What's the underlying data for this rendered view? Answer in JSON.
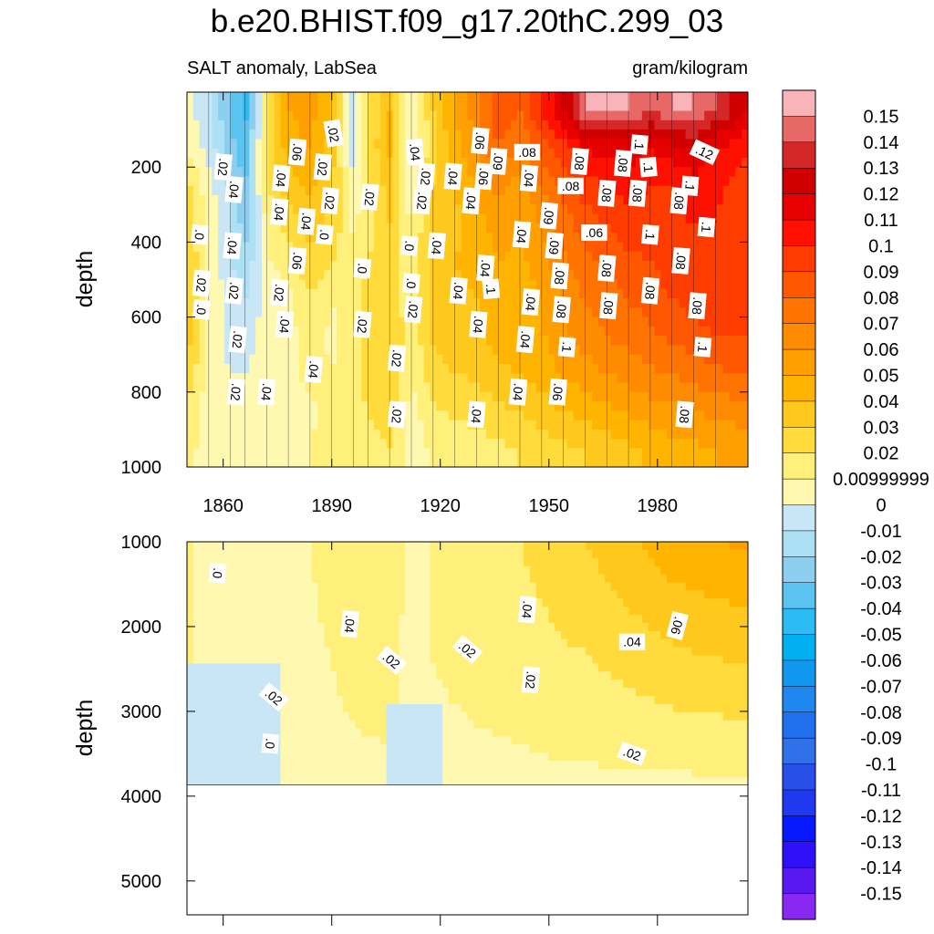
{
  "chart_data": {
    "type": "heatmap",
    "title": "b.e20.BHIST.f09_g17.20thC.299_03",
    "variable_label": "SALT anomaly, LabSea",
    "units_label": "gram/kilogram",
    "ylabel": "depth",
    "upper_panel": {
      "xlim": [
        1850,
        2005
      ],
      "ylim": [
        0,
        1000
      ],
      "x_ticks": [
        1860,
        1890,
        1920,
        1950,
        1980
      ],
      "x_tick_labels": [
        "1860",
        "1890",
        "1920",
        "1950",
        "1980"
      ],
      "y_ticks": [
        200,
        400,
        600,
        800,
        1000
      ],
      "y_tick_labels": [
        "200",
        "400",
        "600",
        "800",
        "1000"
      ]
    },
    "lower_panel": {
      "xlim": [
        1850,
        2005
      ],
      "ylim": [
        1000,
        5400
      ],
      "data_max_depth": 3870,
      "y_ticks": [
        1000,
        2000,
        3000,
        4000,
        5000
      ],
      "y_tick_labels": [
        "1000",
        "2000",
        "3000",
        "4000",
        "5000"
      ]
    },
    "colorbar": {
      "levels": [
        0.15,
        0.14,
        0.13,
        0.12,
        0.11,
        0.1,
        0.09,
        0.08,
        0.07,
        0.06,
        0.05,
        0.04,
        0.03,
        0.02,
        0.01,
        0,
        -0.01,
        -0.02,
        -0.03,
        -0.04,
        -0.05,
        -0.06,
        -0.07,
        -0.08,
        -0.09,
        -0.1,
        -0.11,
        -0.12,
        -0.13,
        -0.14,
        -0.15
      ],
      "labels": [
        "0.15",
        "0.14",
        "0.13",
        "0.12",
        "0.11",
        "0.1",
        "0.09",
        "0.08",
        "0.07",
        "0.06",
        "0.05",
        "0.04",
        "0.03",
        "0.02",
        "0.00999999",
        "0",
        "-0.01",
        "-0.02",
        "-0.03",
        "-0.04",
        "-0.05",
        "-0.06",
        "-0.07",
        "-0.08",
        "-0.09",
        "-0.1",
        "-0.11",
        "-0.12",
        "-0.13",
        "-0.14",
        "-0.15"
      ],
      "colors": [
        "#f8b4b8",
        "#e86868",
        "#d42828",
        "#d00000",
        "#e60000",
        "#ff1000",
        "#ff3c00",
        "#ff5800",
        "#ff7400",
        "#ff8c00",
        "#ffa000",
        "#ffb400",
        "#ffc81c",
        "#ffdc3c",
        "#fff07c",
        "#fff8b0",
        "#c8e6f6",
        "#ace0f4",
        "#8ccef0",
        "#5cc4f0",
        "#2cbcf4",
        "#00b0f0",
        "#1098f0",
        "#1e88f0",
        "#2070f0",
        "#3070e8",
        "#2850e8",
        "#2038f0",
        "#0818ff",
        "#3010f8",
        "#5818f0",
        "#8828f0"
      ]
    },
    "columns": [
      {
        "x": 1850,
        "v": [
          0.005,
          0.01,
          0.022,
          0.028,
          0.03,
          0.032,
          0.035,
          0.03,
          0.018,
          0.015
        ]
      },
      {
        "x": 1856,
        "v": [
          -0.008,
          -0.005,
          0.004,
          0.006,
          0.008,
          0.01,
          0.008,
          0.005,
          0.004,
          0.003
        ]
      },
      {
        "x": 1862,
        "v": [
          -0.03,
          -0.025,
          -0.012,
          -0.01,
          -0.008,
          -0.005,
          -0.003,
          0.0,
          0.002,
          0.003
        ]
      },
      {
        "x": 1866,
        "v": [
          -0.045,
          -0.04,
          -0.03,
          -0.025,
          -0.02,
          -0.01,
          -0.005,
          0.0,
          0.002,
          0.004
        ]
      },
      {
        "x": 1872,
        "v": [
          0.02,
          0.025,
          0.018,
          0.012,
          0.008,
          0.004,
          0.005,
          0.005,
          0.006,
          0.007
        ]
      },
      {
        "x": 1878,
        "v": [
          0.05,
          0.045,
          0.035,
          0.025,
          0.015,
          0.008,
          0.006,
          0.007,
          0.008,
          0.009
        ]
      },
      {
        "x": 1884,
        "v": [
          0.055,
          0.05,
          0.042,
          0.035,
          0.028,
          0.018,
          0.015,
          0.012,
          0.009,
          0.01
        ]
      },
      {
        "x": 1890,
        "v": [
          0.04,
          0.035,
          0.03,
          0.028,
          0.022,
          0.01,
          0.008,
          0.01,
          0.012,
          0.012
        ]
      },
      {
        "x": 1896,
        "v": [
          -0.01,
          -0.008,
          0.004,
          0.008,
          0.012,
          0.014,
          0.016,
          0.018,
          0.018,
          0.016
        ]
      },
      {
        "x": 1900,
        "v": [
          0.02,
          0.022,
          0.018,
          0.016,
          0.02,
          0.025,
          0.024,
          0.022,
          0.02,
          0.018
        ]
      },
      {
        "x": 1906,
        "v": [
          0.04,
          0.042,
          0.035,
          0.03,
          0.025,
          0.028,
          0.03,
          0.028,
          0.024,
          0.02
        ]
      },
      {
        "x": 1912,
        "v": [
          -0.005,
          -0.003,
          0.002,
          0.008,
          0.01,
          0.012,
          0.014,
          0.01,
          0.006,
          0.004
        ]
      },
      {
        "x": 1918,
        "v": [
          0.03,
          0.028,
          0.03,
          0.035,
          0.038,
          0.036,
          0.032,
          0.026,
          0.018,
          0.012
        ]
      },
      {
        "x": 1924,
        "v": [
          0.05,
          0.045,
          0.04,
          0.038,
          0.04,
          0.038,
          0.036,
          0.03,
          0.022,
          0.014
        ]
      },
      {
        "x": 1930,
        "v": [
          0.065,
          0.06,
          0.05,
          0.045,
          0.042,
          0.04,
          0.038,
          0.032,
          0.024,
          0.016
        ]
      },
      {
        "x": 1936,
        "v": [
          0.09,
          0.08,
          0.065,
          0.055,
          0.05,
          0.048,
          0.045,
          0.038,
          0.028,
          0.018
        ]
      },
      {
        "x": 1942,
        "v": [
          0.08,
          0.07,
          0.055,
          0.05,
          0.048,
          0.045,
          0.044,
          0.04,
          0.03,
          0.02
        ]
      },
      {
        "x": 1948,
        "v": [
          0.1,
          0.085,
          0.07,
          0.06,
          0.055,
          0.05,
          0.048,
          0.045,
          0.035,
          0.024
        ]
      },
      {
        "x": 1954,
        "v": [
          0.12,
          0.095,
          0.085,
          0.075,
          0.068,
          0.062,
          0.058,
          0.052,
          0.04,
          0.028
        ]
      },
      {
        "x": 1960,
        "v": [
          0.15,
          0.11,
          0.095,
          0.085,
          0.078,
          0.07,
          0.064,
          0.056,
          0.044,
          0.03
        ]
      },
      {
        "x": 1966,
        "v": [
          0.15,
          0.115,
          0.1,
          0.09,
          0.082,
          0.076,
          0.07,
          0.06,
          0.048,
          0.034
        ]
      },
      {
        "x": 1972,
        "v": [
          0.15,
          0.115,
          0.105,
          0.095,
          0.088,
          0.08,
          0.074,
          0.064,
          0.052,
          0.038
        ]
      },
      {
        "x": 1978,
        "v": [
          0.14,
          0.11,
          0.1,
          0.095,
          0.09,
          0.085,
          0.078,
          0.068,
          0.056,
          0.042
        ]
      },
      {
        "x": 1984,
        "v": [
          0.15,
          0.115,
          0.1,
          0.098,
          0.095,
          0.09,
          0.082,
          0.07,
          0.058,
          0.046
        ]
      },
      {
        "x": 1990,
        "v": [
          0.15,
          0.12,
          0.105,
          0.1,
          0.098,
          0.094,
          0.086,
          0.074,
          0.06,
          0.048
        ]
      },
      {
        "x": 1996,
        "v": [
          0.14,
          0.11,
          0.102,
          0.1,
          0.1,
          0.096,
          0.09,
          0.078,
          0.064,
          0.05
        ]
      },
      {
        "x": 2005,
        "v": [
          0.12,
          0.1,
          0.095,
          0.095,
          0.098,
          0.095,
          0.09,
          0.08,
          0.066,
          0.052
        ]
      }
    ],
    "upper_contour_labels": [
      {
        "t": ".02",
        "x": 1890.5,
        "y": 110,
        "rot": 80
      },
      {
        "t": ".06",
        "x": 1931,
        "y": 130,
        "rot": 95
      },
      {
        "t": ".04",
        "x": 1913,
        "y": 160,
        "rot": 85
      },
      {
        "t": ".06",
        "x": 1880.5,
        "y": 160,
        "rot": 95
      },
      {
        "t": ".08",
        "x": 1944,
        "y": 160,
        "rot": 0
      },
      {
        "t": ".1",
        "x": 1975,
        "y": 140,
        "rot": 95
      },
      {
        "t": ".12",
        "x": 1993,
        "y": 160,
        "rot": 25
      },
      {
        "t": ".02",
        "x": 1860,
        "y": 200,
        "rot": 95
      },
      {
        "t": ".09",
        "x": 1936,
        "y": 185,
        "rot": 95
      },
      {
        "t": ".02",
        "x": 1887.5,
        "y": 200,
        "rot": 95
      },
      {
        "t": ".08",
        "x": 1958.5,
        "y": 185,
        "rot": 95
      },
      {
        "t": ".08",
        "x": 1970.5,
        "y": 190,
        "rot": 95
      },
      {
        "t": ".1",
        "x": 1977.5,
        "y": 200,
        "rot": 85
      },
      {
        "t": ".02",
        "x": 1916,
        "y": 225,
        "rot": 95
      },
      {
        "t": ".04",
        "x": 1923.5,
        "y": 225,
        "rot": 95
      },
      {
        "t": ".06",
        "x": 1932,
        "y": 225,
        "rot": 95
      },
      {
        "t": ".04",
        "x": 1876,
        "y": 230,
        "rot": 95
      },
      {
        "t": ".04",
        "x": 1944.5,
        "y": 230,
        "rot": 95
      },
      {
        "t": ".08",
        "x": 1956,
        "y": 250,
        "rot": 0
      },
      {
        "t": ".1",
        "x": 1989,
        "y": 250,
        "rot": 95
      },
      {
        "t": ".04",
        "x": 1863,
        "y": 260,
        "rot": 95
      },
      {
        "t": ".02",
        "x": 1900.5,
        "y": 280,
        "rot": 95
      },
      {
        "t": ".08",
        "x": 1966,
        "y": 270,
        "rot": 95
      },
      {
        "t": ".08",
        "x": 1974.5,
        "y": 270,
        "rot": 95
      },
      {
        "t": ".02",
        "x": 1889.5,
        "y": 290,
        "rot": 95
      },
      {
        "t": ".02",
        "x": 1915,
        "y": 290,
        "rot": 95
      },
      {
        "t": ".04",
        "x": 1928.5,
        "y": 290,
        "rot": 95
      },
      {
        "t": ".08",
        "x": 1986,
        "y": 290,
        "rot": 95
      },
      {
        "t": ".04",
        "x": 1875.5,
        "y": 320,
        "rot": 95
      },
      {
        "t": ".09",
        "x": 1950,
        "y": 330,
        "rot": 95
      },
      {
        "t": ".04",
        "x": 1883,
        "y": 345,
        "rot": 95
      },
      {
        "t": ".1",
        "x": 1993.5,
        "y": 360,
        "rot": 95
      },
      {
        "t": ".06",
        "x": 1962.5,
        "y": 375,
        "rot": 0
      },
      {
        "t": ".1",
        "x": 1978,
        "y": 380,
        "rot": 95
      },
      {
        "t": ".0",
        "x": 1853.5,
        "y": 380,
        "rot": 95
      },
      {
        "t": ".04",
        "x": 1942.5,
        "y": 380,
        "rot": 95
      },
      {
        "t": ".0",
        "x": 1888,
        "y": 380,
        "rot": 95
      },
      {
        "t": ".04",
        "x": 1862.5,
        "y": 410,
        "rot": 95
      },
      {
        "t": ".0",
        "x": 1911.5,
        "y": 410,
        "rot": 95
      },
      {
        "t": ".04",
        "x": 1919,
        "y": 410,
        "rot": 95
      },
      {
        "t": ".09",
        "x": 1951.5,
        "y": 410,
        "rot": 95
      },
      {
        "t": ".06",
        "x": 1880.5,
        "y": 450,
        "rot": 95
      },
      {
        "t": ".08",
        "x": 1986.5,
        "y": 450,
        "rot": 95
      },
      {
        "t": ".0",
        "x": 1898.5,
        "y": 470,
        "rot": 95
      },
      {
        "t": ".04",
        "x": 1932.5,
        "y": 470,
        "rot": 95
      },
      {
        "t": ".08",
        "x": 1966,
        "y": 470,
        "rot": 95
      },
      {
        "t": ".08",
        "x": 1953,
        "y": 490,
        "rot": 95
      },
      {
        "t": ".02",
        "x": 1854,
        "y": 510,
        "rot": 95
      },
      {
        "t": ".1",
        "x": 1934,
        "y": 525,
        "rot": 85
      },
      {
        "t": ".0",
        "x": 1912,
        "y": 510,
        "rot": 95
      },
      {
        "t": ".02",
        "x": 1863,
        "y": 530,
        "rot": 95
      },
      {
        "t": ".02",
        "x": 1875.5,
        "y": 535,
        "rot": 95
      },
      {
        "t": ".04",
        "x": 1925,
        "y": 530,
        "rot": 95
      },
      {
        "t": ".08",
        "x": 1978,
        "y": 530,
        "rot": 95
      },
      {
        "t": ".04",
        "x": 1945,
        "y": 560,
        "rot": 95
      },
      {
        "t": ".08",
        "x": 1966.5,
        "y": 570,
        "rot": 95
      },
      {
        "t": ".08",
        "x": 1991,
        "y": 570,
        "rot": 95
      },
      {
        "t": ".0",
        "x": 1854,
        "y": 580,
        "rot": 95
      },
      {
        "t": ".02",
        "x": 1912.5,
        "y": 580,
        "rot": 95
      },
      {
        "t": ".08",
        "x": 1953.5,
        "y": 580,
        "rot": 95
      },
      {
        "t": ".04",
        "x": 1877,
        "y": 620,
        "rot": 95
      },
      {
        "t": ".02",
        "x": 1898.5,
        "y": 620,
        "rot": 95
      },
      {
        "t": ".04",
        "x": 1930.5,
        "y": 620,
        "rot": 95
      },
      {
        "t": ".02",
        "x": 1864,
        "y": 660,
        "rot": 95
      },
      {
        "t": ".04",
        "x": 1943.5,
        "y": 660,
        "rot": 95
      },
      {
        "t": ".1",
        "x": 1955,
        "y": 680,
        "rot": 95
      },
      {
        "t": ".1",
        "x": 1992.5,
        "y": 680,
        "rot": 95
      },
      {
        "t": ".02",
        "x": 1908,
        "y": 710,
        "rot": 95
      },
      {
        "t": ".04",
        "x": 1885,
        "y": 740,
        "rot": 95
      },
      {
        "t": ".02",
        "x": 1863.5,
        "y": 800,
        "rot": 95
      },
      {
        "t": ".04",
        "x": 1872,
        "y": 800,
        "rot": 95
      },
      {
        "t": ".04",
        "x": 1941.5,
        "y": 800,
        "rot": 95
      },
      {
        "t": ".06",
        "x": 1952.5,
        "y": 800,
        "rot": 95
      },
      {
        "t": ".02",
        "x": 1908,
        "y": 860,
        "rot": 95
      },
      {
        "t": ".04",
        "x": 1930,
        "y": 860,
        "rot": 95
      },
      {
        "t": ".08",
        "x": 1987.5,
        "y": 860,
        "rot": 95
      }
    ],
    "lower_contour_labels": [
      {
        "t": ".0",
        "x": 1858.5,
        "y": 1370,
        "rot": 95
      },
      {
        "t": ".04",
        "x": 1944,
        "y": 1800,
        "rot": 95
      },
      {
        "t": ".04",
        "x": 1895,
        "y": 1970,
        "rot": 95
      },
      {
        "t": ".06",
        "x": 1985.5,
        "y": 1990,
        "rot": 105
      },
      {
        "t": ".04",
        "x": 1973,
        "y": 2180,
        "rot": 0
      },
      {
        "t": ".02",
        "x": 1927.5,
        "y": 2270,
        "rot": 40
      },
      {
        "t": ".02",
        "x": 1906.5,
        "y": 2400,
        "rot": 40
      },
      {
        "t": ".02",
        "x": 1945,
        "y": 2630,
        "rot": 95
      },
      {
        "t": ".02",
        "x": 1874,
        "y": 2830,
        "rot": 40
      },
      {
        "t": ".0",
        "x": 1873,
        "y": 3380,
        "rot": 95
      },
      {
        "t": ".02",
        "x": 1973,
        "y": 3500,
        "rot": 20
      }
    ]
  }
}
